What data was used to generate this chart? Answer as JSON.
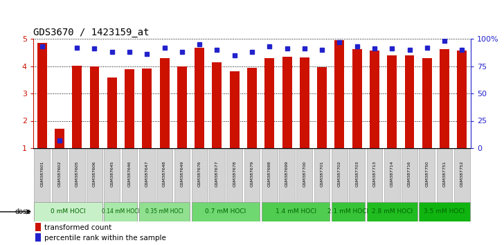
{
  "title": "GDS3670 / 1423159_at",
  "samples": [
    "GSM387601",
    "GSM387602",
    "GSM387605",
    "GSM387606",
    "GSM387645",
    "GSM387646",
    "GSM387647",
    "GSM387648",
    "GSM387649",
    "GSM387676",
    "GSM387677",
    "GSM387678",
    "GSM387679",
    "GSM387698",
    "GSM387699",
    "GSM387700",
    "GSM387701",
    "GSM387702",
    "GSM387703",
    "GSM387713",
    "GSM387714",
    "GSM387716",
    "GSM387750",
    "GSM387751",
    "GSM387752"
  ],
  "bar_values": [
    4.85,
    1.72,
    4.02,
    3.98,
    3.58,
    3.88,
    3.91,
    4.28,
    4.0,
    4.67,
    4.13,
    3.82,
    3.93,
    4.28,
    4.33,
    4.32,
    3.97,
    4.95,
    4.63,
    4.58,
    4.38,
    4.38,
    4.28,
    4.62,
    4.58
  ],
  "percentile_values": [
    93,
    7,
    92,
    91,
    88,
    88,
    86,
    92,
    88,
    95,
    90,
    85,
    88,
    93,
    91,
    91,
    90,
    97,
    93,
    91,
    91,
    90,
    92,
    98,
    90
  ],
  "dose_groups": [
    {
      "label": "0 mM HOCl",
      "start": 0,
      "end": 3,
      "color": "#c8f0c8"
    },
    {
      "label": "0.14 mM HOCl",
      "start": 4,
      "end": 5,
      "color": "#a8e8a8"
    },
    {
      "label": "0.35 mM HOCl",
      "start": 6,
      "end": 8,
      "color": "#90e090"
    },
    {
      "label": "0.7 mM HOCl",
      "start": 9,
      "end": 12,
      "color": "#70d870"
    },
    {
      "label": "1.4 mM HOCl",
      "start": 13,
      "end": 16,
      "color": "#50cc50"
    },
    {
      "label": "2.1 mM HOCl",
      "start": 17,
      "end": 18,
      "color": "#38c438"
    },
    {
      "label": "2.8 mM HOCl",
      "start": 19,
      "end": 21,
      "color": "#20bc20"
    },
    {
      "label": "3.5 mM HOCl",
      "start": 22,
      "end": 24,
      "color": "#10b410"
    }
  ],
  "bar_color": "#cc1100",
  "dot_color": "#2222cc",
  "ylim_left": [
    1,
    5
  ],
  "ylim_right": [
    0,
    100
  ],
  "yticks_left": [
    1,
    2,
    3,
    4,
    5
  ],
  "yticks_right": [
    0,
    25,
    50,
    75,
    100
  ],
  "ytick_labels_right": [
    "0",
    "25",
    "50",
    "75",
    "100%"
  ],
  "background_color": "#ffffff",
  "title_fontsize": 10,
  "left_tick_color": "#cc1100",
  "right_tick_color": "#2222cc",
  "sample_box_color": "#cccccc",
  "sample_box_edge": "#999999",
  "dose_label_color": "#006600"
}
